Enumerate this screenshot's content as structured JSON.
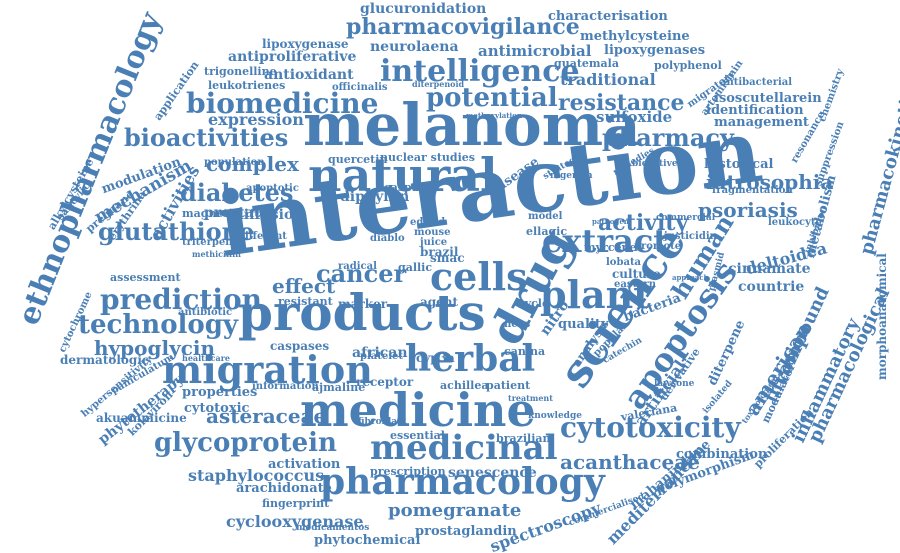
{
  "style": {
    "word_color": "#4a7fb5",
    "background": "#ffffff"
  },
  "words": [
    "interaction",
    "melanoma",
    "products",
    "medicine",
    "natural",
    "science",
    "drug",
    "migration",
    "herbal",
    "medicinal",
    "pharmacology",
    "cells",
    "plant",
    "extract",
    "apoptosis",
    "cytotoxicity",
    "ethnopharmacology",
    "biomedicine",
    "intelligence",
    "potential",
    "resistance",
    "pharmacovigilance",
    "glutathione",
    "prediction",
    "technology",
    "bioactivities",
    "diabetes",
    "cancer",
    "glycoprotein",
    "pharmacy",
    "psoriasis",
    "iatrosophia",
    "activity",
    "human",
    "american",
    "pharmacokinetic",
    "pharmacological",
    "inflammatory",
    "compound",
    "invasion",
    "acanthaceae",
    "pomegranate",
    "hypoglycin",
    "asteraceae",
    "staphylococcus",
    "cyclooxygenase",
    "spectroscopy",
    "mediterranean",
    "artificial",
    "glucuronidation",
    "characterisation",
    "methylcysteine",
    "lipoxygenases",
    "lipoxygenase",
    "antiproliferative",
    "antimicrobial",
    "neurolaena",
    "antioxidant",
    "trigonelline",
    "guatemala",
    "traditional",
    "polyphenol",
    "leukotrienes",
    "officinalis",
    "expression",
    "sulfoxide",
    "management",
    "identification",
    "isoscutellarein",
    "antibacterial",
    "artemisinin",
    "complex",
    "historical",
    "mechanism",
    "activities",
    "salicylic",
    "modulation",
    "pregnane",
    "erythrina",
    "alkylcysteine",
    "prostate",
    "diffusion",
    "diphyllin",
    "effect",
    "assessment",
    "cinnamate",
    "deltoidea",
    "metabolism",
    "countrie",
    "morphoanatomical",
    "dermatologic",
    "phytotherapy",
    "akuammicine",
    "properties",
    "cytotoxic",
    "caspases",
    "african",
    "activation",
    "arachidonate",
    "fingerprint",
    "phytochemical",
    "prostaglandin",
    "senescence",
    "prescription",
    "essential",
    "brazilian",
    "canina",
    "patient",
    "quality",
    "bacteria",
    "valeriana",
    "derivative",
    "diterpene",
    "combination",
    "polymorphism",
    "mahanimbine",
    "modulator",
    "proliferation",
    "quercetin",
    "nuclear studies",
    "apoptotic",
    "caspase",
    "population",
    "magnetic",
    "triterpene",
    "antibiotic",
    "cytochrome",
    "hypersensitivity",
    "paniculatum",
    "kolaviron",
    "receptor",
    "ajmaline",
    "information",
    "achillea",
    "marker",
    "resistant",
    "agent",
    "cyp3a",
    "platelet",
    "gallic",
    "smac",
    "radical",
    "culture",
    "myrcene",
    "justicidin",
    "promote",
    "leukocyte",
    "fragmentation",
    "resonance",
    "commercial",
    "plasmid",
    "migratory",
    "commercialised",
    "medicamentos",
    "fibroblast",
    "lawsone",
    "edited",
    "diablo",
    "mouse",
    "juice",
    "brazil",
    "lobata",
    "eastern",
    "cycle",
    "ficus",
    "nitro",
    "model",
    "ellagic",
    "disease",
    "strategy",
    "nigerian",
    "different",
    "chemistry",
    "suppression",
    "inhibition",
    "toxicological",
    "catechin",
    "knowledge",
    "healthcare",
    "application",
    "methicillin",
    "diterpenoid",
    "methoxylation",
    "remedies",
    "bioactive",
    "treatment",
    "analysis",
    "popular",
    "isolated",
    "pathogen",
    "approach"
  ]
}
